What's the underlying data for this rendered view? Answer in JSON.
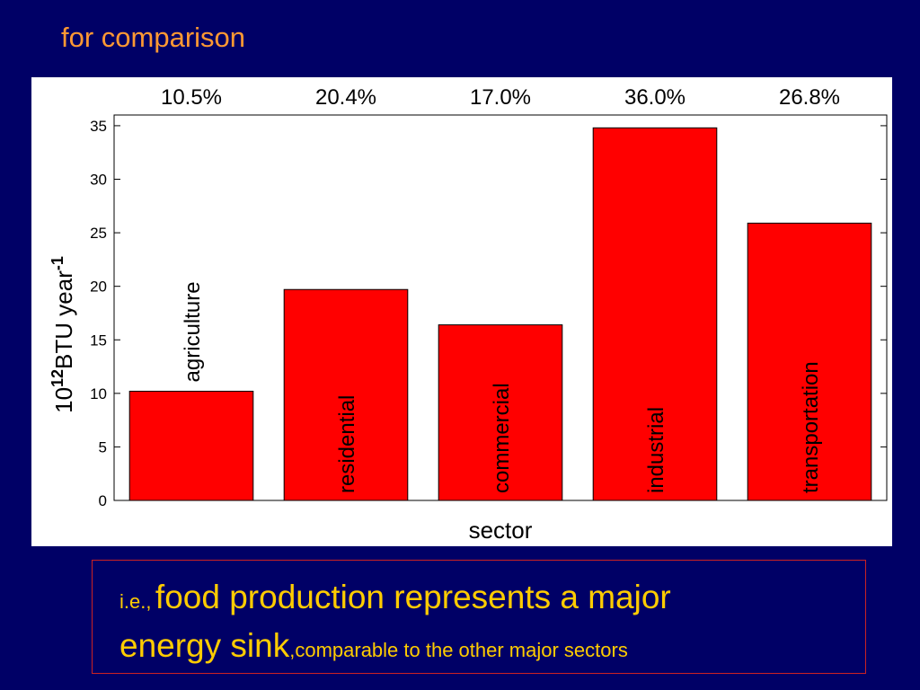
{
  "slide": {
    "title": "for comparison",
    "caption": {
      "prefix": "i.e.,",
      "main_line1": "food production represents a major",
      "main_line2": "energy sink",
      "suffix": ",comparable to the other major sectors"
    }
  },
  "colors": {
    "background": "#000066",
    "title": "#ff9933",
    "caption": "#ffcc00",
    "bar_fill": "#ff0000",
    "box_border": "#cc2222"
  },
  "chart_data": {
    "type": "bar",
    "categories": [
      "agriculture",
      "residential",
      "commercial",
      "industrial",
      "transportation"
    ],
    "values": [
      10.2,
      19.7,
      16.4,
      34.8,
      25.9
    ],
    "percent_labels": [
      "10.5%",
      "20.4%",
      "17.0%",
      "36.0%",
      "26.8%"
    ],
    "xlabel": "sector",
    "ylabel_base": "10",
    "ylabel_exp": "12",
    "ylabel_unit": "BTU year",
    "ylabel_unit_exp": "-1",
    "ylim": [
      0,
      36
    ],
    "yticks": [
      "0",
      "5",
      "10",
      "15",
      "20",
      "25",
      "30",
      "35"
    ],
    "ytick_values": [
      0,
      5,
      10,
      15,
      20,
      25,
      30,
      35
    ],
    "grid": false,
    "legend": "none"
  }
}
